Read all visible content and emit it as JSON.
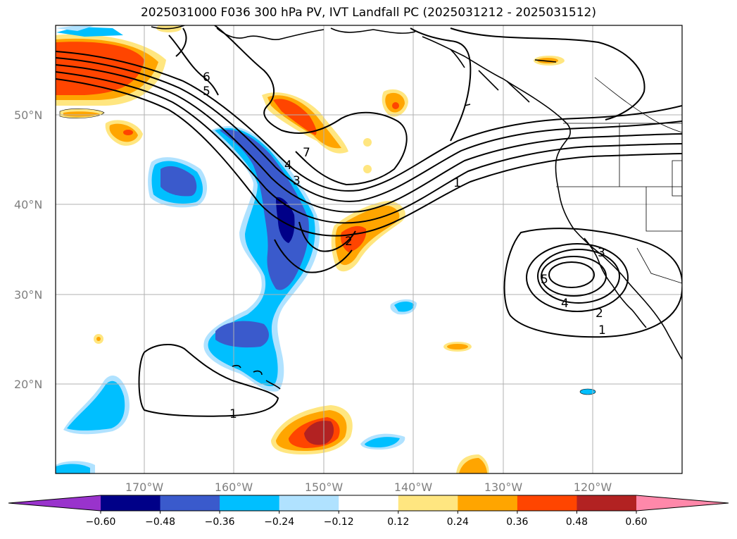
{
  "title": "2025031000 F036 300 hPa PV, IVT Landfall PC (2025031212 - 2025031512)",
  "axes": {
    "lon_ticks": [
      "170°W",
      "160°W",
      "150°W",
      "140°W",
      "130°W",
      "120°W"
    ],
    "lat_ticks": [
      "50°N",
      "40°N",
      "30°N",
      "20°N"
    ],
    "lon_range": [
      -180,
      -110
    ],
    "lat_range": [
      10,
      60
    ],
    "grid": true
  },
  "colorbar": {
    "orientation": "horizontal",
    "placement": "bottom",
    "extend": "both",
    "levels": [
      "−0.60",
      "−0.48",
      "−0.36",
      "−0.24",
      "−0.12",
      "0.12",
      "0.24",
      "0.36",
      "0.48",
      "0.60"
    ],
    "colors": [
      "#9933cc",
      "#000088",
      "#3a5acc",
      "#00bfff",
      "#b0e2ff",
      "#ffffff",
      "#ffe680",
      "#ffa500",
      "#ff4500",
      "#b22222",
      "#ff88aa"
    ]
  },
  "contour_labels": [
    "6",
    "5",
    "7",
    "4",
    "3",
    "2",
    "1",
    "1",
    "3",
    "5",
    "4",
    "2",
    "1"
  ],
  "colors": {
    "grid": "#b0b0b0",
    "coast": "#000000",
    "contour": "#000000"
  }
}
